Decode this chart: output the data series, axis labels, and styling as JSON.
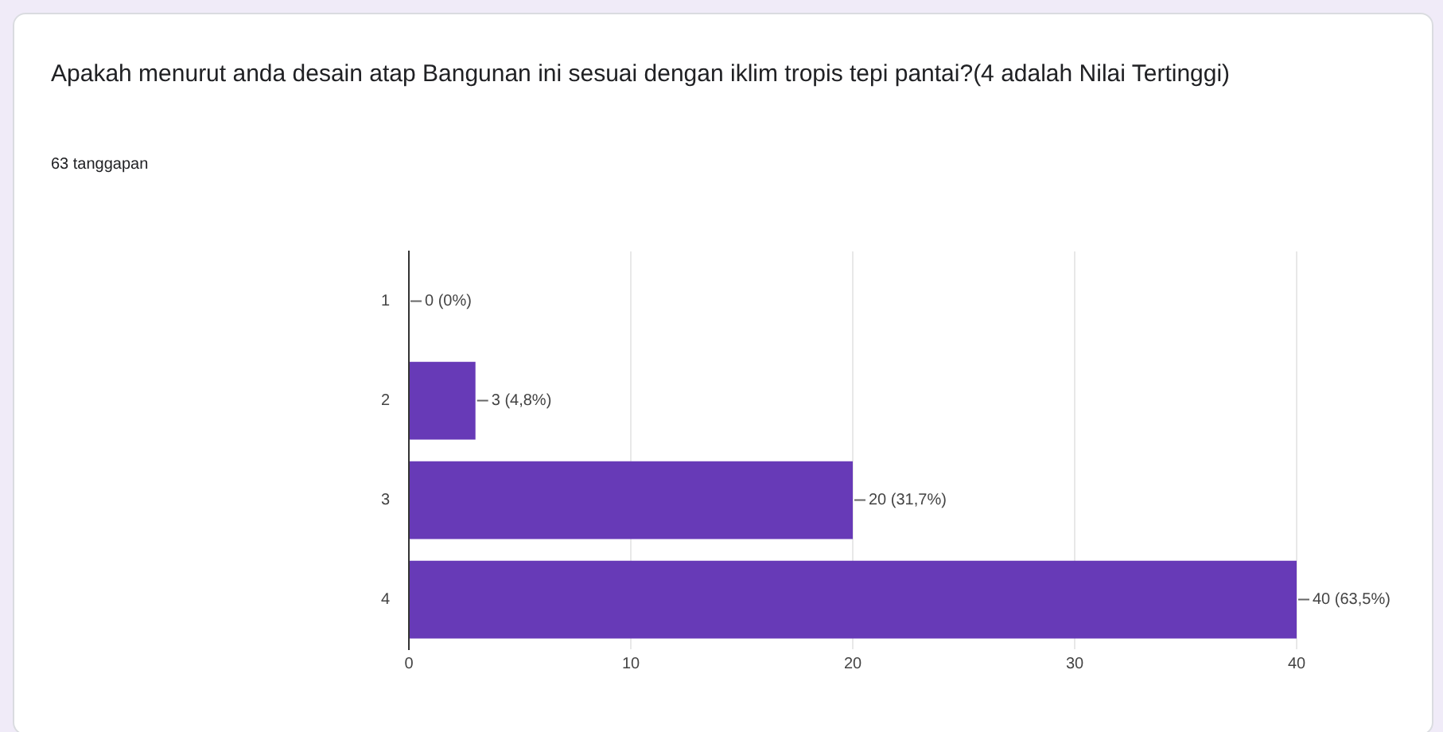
{
  "chart_data": {
    "type": "bar",
    "orientation": "horizontal",
    "title": "Apakah menurut anda desain atap Bangunan ini sesuai dengan iklim tropis tepi pantai?(4 adalah Nilai Tertinggi)",
    "subtitle": "63 tanggapan",
    "categories": [
      "1",
      "2",
      "3",
      "4"
    ],
    "values": [
      0,
      3,
      20,
      40
    ],
    "value_labels": [
      "0 (0%)",
      "3 (4,8%)",
      "20 (31,7%)",
      "40 (63,5%)"
    ],
    "color": "#673ab7",
    "xlim": [
      0,
      40
    ],
    "xticks": [
      0,
      10,
      20,
      30,
      40
    ],
    "grid": "x",
    "legend": false
  }
}
